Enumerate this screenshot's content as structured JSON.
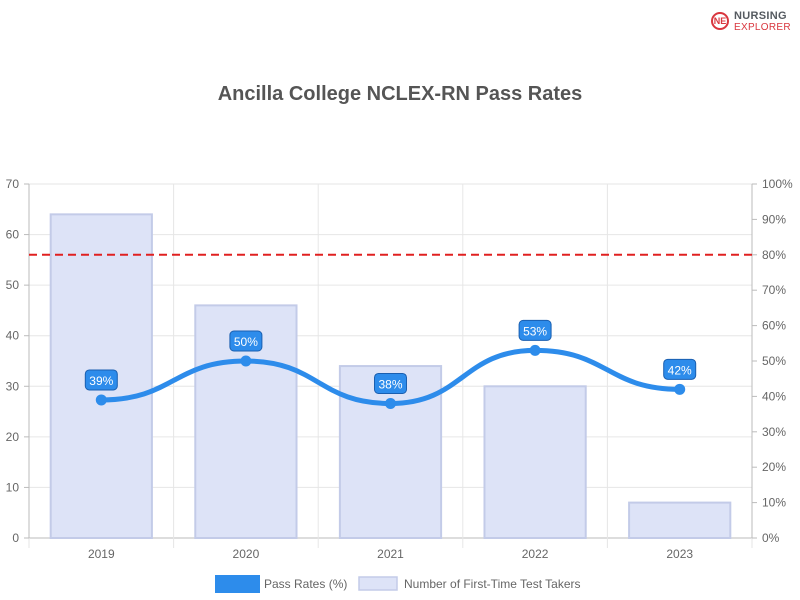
{
  "logo": {
    "line1": "NURSING",
    "line2": "EXPLORER",
    "mark": "NE"
  },
  "chart_data": {
    "type": "bar",
    "title": "Ancilla College NCLEX-RN Pass Rates",
    "categories": [
      "2019",
      "2020",
      "2021",
      "2022",
      "2023"
    ],
    "series": [
      {
        "name": "Pass Rates (%)",
        "type": "line",
        "axis": "right",
        "values": [
          39,
          50,
          38,
          53,
          42
        ],
        "labels": [
          "39%",
          "50%",
          "38%",
          "53%",
          "42%"
        ],
        "color": "#2d8ceb"
      },
      {
        "name": "Number of First-Time Test Takers",
        "type": "bar",
        "axis": "left",
        "values": [
          64,
          46,
          34,
          30,
          7
        ],
        "color": "#dde3f7",
        "border_color": "#c3cbe8"
      }
    ],
    "left_axis": {
      "ylim": [
        0,
        70
      ],
      "ticks": [
        "0",
        "10",
        "20",
        "30",
        "40",
        "50",
        "60",
        "70"
      ]
    },
    "right_axis": {
      "ylim": [
        0,
        100
      ],
      "ticks": [
        "0%",
        "10%",
        "20%",
        "30%",
        "40%",
        "50%",
        "60%",
        "70%",
        "80%",
        "90%",
        "100%"
      ]
    },
    "reference_line": {
      "axis": "right",
      "value": 80,
      "color": "#e02020",
      "style": "dashed"
    },
    "grid": true,
    "legend_position": "bottom"
  }
}
